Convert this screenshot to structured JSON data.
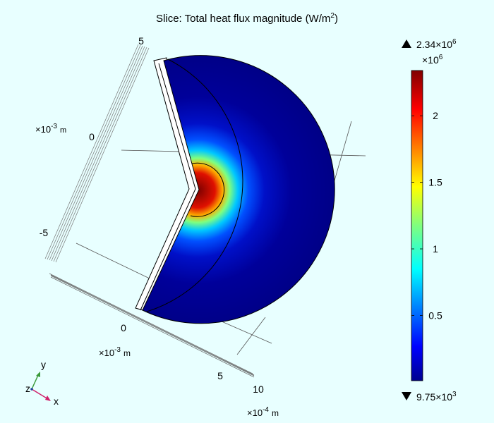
{
  "chart_data": {
    "type": "heatmap",
    "title": "Slice: Total heat flux magnitude (W/m²)",
    "title_base": "Slice: Total heat flux magnitude (W/m",
    "title_sup": "2",
    "title_end": ")",
    "colorbar": {
      "colormap": "jet",
      "scale_label": "×10⁶",
      "scale_base": "×10",
      "scale_sup": "6",
      "ticks": [
        0.5,
        1,
        1.5,
        2
      ],
      "tick_labels": [
        "0.5",
        "1",
        "1.5",
        "2"
      ],
      "min": 0.00975,
      "max": 2.34,
      "max_marker_label": "2.34×10⁶",
      "max_base": "2.34×10",
      "max_sup": "6",
      "min_marker_label": "9.75×10³",
      "min_base": "9.75×10",
      "min_sup": "3"
    },
    "axes": {
      "y_axis": {
        "tick_labels": [
          "5",
          "0",
          "-5"
        ],
        "unit_base": "×10",
        "unit_sup": "-3",
        "unit_m": "m"
      },
      "x_axis": {
        "tick_labels": [
          "0"
        ],
        "unit_base": "×10",
        "unit_sup": "-3",
        "unit_m": "m"
      },
      "z_axis": {
        "tick_labels": [
          "5",
          "10"
        ],
        "unit_base": "×10",
        "unit_sup": "-4",
        "unit_m": "m"
      }
    },
    "orientation_triad": {
      "labels": [
        "y",
        "z",
        "x"
      ]
    },
    "colors": {
      "background": "#e8ffff",
      "triad_y": "#3a9a3a",
      "triad_x": "#d0206a"
    }
  }
}
